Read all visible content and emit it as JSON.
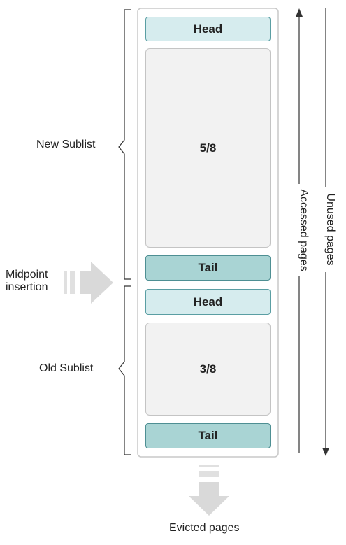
{
  "new_sublist": {
    "label": "New Sublist",
    "head_label": "Head",
    "fraction": "5/8",
    "tail_label": "Tail"
  },
  "old_sublist": {
    "label": "Old Sublist",
    "head_label": "Head",
    "fraction": "3/8",
    "tail_label": "Tail"
  },
  "midpoint": {
    "line1": "Midpoint",
    "line2": "insertion"
  },
  "evicted_label": "Evicted pages",
  "accessed_label": "Accessed pages",
  "unused_label": "Unused pages",
  "colors": {
    "head_fill": "#d6ecee",
    "tail_fill": "#a9d4d4",
    "middle_fill": "#f2f2f2",
    "arrow_gray": "#d9d9d9"
  }
}
